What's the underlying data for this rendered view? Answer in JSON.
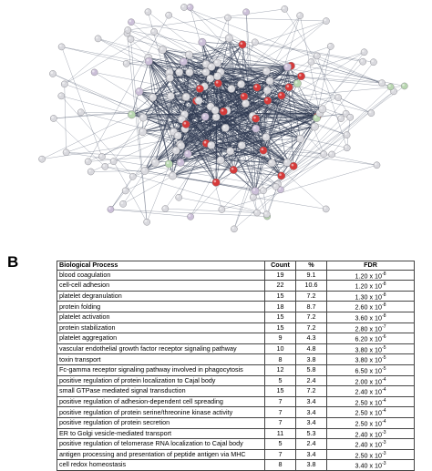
{
  "panel_b_label": "B",
  "colors": {
    "edge": "#2f3a52",
    "node_highlight": "#d63a3a",
    "node_default": "#d9d9de",
    "node_alt": "#cbbfd8",
    "node_green": "#b8d6b0"
  },
  "table": {
    "headers": [
      "Biological Process",
      "Count",
      "%",
      "FDR"
    ],
    "rows": [
      {
        "process": "blood coagulation",
        "count": "19",
        "pct": "9.1",
        "fdr_mant": "1.20",
        "fdr_exp": "-8"
      },
      {
        "process": "cell-cell adhesion",
        "count": "22",
        "pct": "10.6",
        "fdr_mant": "1.20",
        "fdr_exp": "-8"
      },
      {
        "process": "platelet degranulation",
        "count": "15",
        "pct": "7.2",
        "fdr_mant": "1.30",
        "fdr_exp": "-8"
      },
      {
        "process": "protein folding",
        "count": "18",
        "pct": "8.7",
        "fdr_mant": "2.60",
        "fdr_exp": "-8"
      },
      {
        "process": "platelet activation",
        "count": "15",
        "pct": "7.2",
        "fdr_mant": "3.60",
        "fdr_exp": "-8"
      },
      {
        "process": "protein stabilization",
        "count": "15",
        "pct": "7.2",
        "fdr_mant": "2.80",
        "fdr_exp": "-7"
      },
      {
        "process": "platelet aggregation",
        "count": "9",
        "pct": "4.3",
        "fdr_mant": "6.20",
        "fdr_exp": "-6"
      },
      {
        "process": "vascular endothelial growth factor receptor signaling pathway",
        "count": "10",
        "pct": "4.8",
        "fdr_mant": "3.80",
        "fdr_exp": "-5"
      },
      {
        "process": "toxin transport",
        "count": "8",
        "pct": "3.8",
        "fdr_mant": "3.80",
        "fdr_exp": "-5"
      },
      {
        "process": "Fc-gamma receptor signaling pathway involved in phagocytosis",
        "count": "12",
        "pct": "5.8",
        "fdr_mant": "6.50",
        "fdr_exp": "-5"
      },
      {
        "process": "positive regulation of protein localization to Cajal body",
        "count": "5",
        "pct": "2.4",
        "fdr_mant": "2.00",
        "fdr_exp": "-4"
      },
      {
        "process": "small GTPase mediated signal transduction",
        "count": "15",
        "pct": "7.2",
        "fdr_mant": "2.40",
        "fdr_exp": "-4"
      },
      {
        "process": "positive regulation of adhesion-dependent cell spreading",
        "count": "7",
        "pct": "3.4",
        "fdr_mant": "2.50",
        "fdr_exp": "-4"
      },
      {
        "process": "positive regulation of protein serine/threonine kinase activity",
        "count": "7",
        "pct": "3.4",
        "fdr_mant": "2.50",
        "fdr_exp": "-4"
      },
      {
        "process": "positive regulation of protein secretion",
        "count": "7",
        "pct": "3.4",
        "fdr_mant": "2.50",
        "fdr_exp": "-4"
      },
      {
        "process": "ER to Golgi vesicle-mediated transport",
        "count": "11",
        "pct": "5.3",
        "fdr_mant": "2.40",
        "fdr_exp": "-3"
      },
      {
        "process": "positive regulation of telomerase RNA localization to Cajal body",
        "count": "5",
        "pct": "2.4",
        "fdr_mant": "2.40",
        "fdr_exp": "-3"
      },
      {
        "process": "antigen processing and presentation of peptide antigen via MHC",
        "count": "7",
        "pct": "3.4",
        "fdr_mant": "2.50",
        "fdr_exp": "-3"
      },
      {
        "process": "cell redox homeostasis",
        "count": "8",
        "pct": "3.8",
        "fdr_mant": "3.40",
        "fdr_exp": "-3"
      }
    ]
  }
}
